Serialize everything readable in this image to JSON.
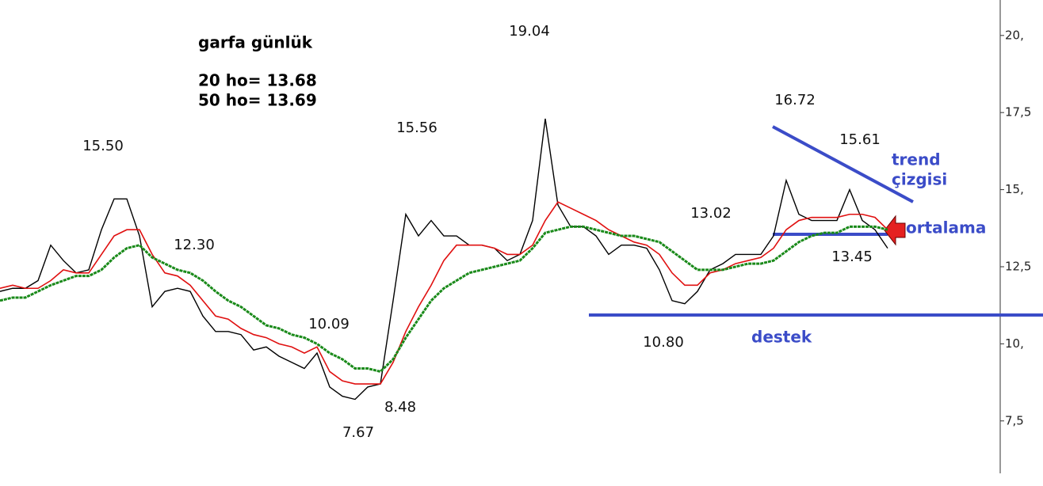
{
  "chart_data": {
    "type": "line",
    "title": "garfa günlük",
    "info_lines": [
      "20 ho= 13.68",
      "50 ho= 13.69"
    ],
    "annotations": [
      "15.50",
      "12.30",
      "10.09",
      "7.67",
      "8.48",
      "15.56",
      "19.04",
      "16.72",
      "15.61",
      "13.02",
      "13.45",
      "10.80"
    ],
    "drawing_labels": [
      "trend",
      "çizgisi",
      "ortalama",
      "destek"
    ],
    "ylim": [
      5.8,
      21.15
    ],
    "yticks": [
      {
        "value": 7.5,
        "label": "7,5"
      },
      {
        "value": 10,
        "label": "10,"
      },
      {
        "value": 12.5,
        "label": "12,5"
      },
      {
        "value": 15,
        "label": "15,"
      },
      {
        "value": 17.5,
        "label": "17,5"
      },
      {
        "value": 20,
        "label": "20,"
      }
    ],
    "series": [
      {
        "color": "#000000",
        "values": [
          11.7,
          11.8,
          11.8,
          12.05,
          13.2,
          12.7,
          12.3,
          12.4,
          13.7,
          14.7,
          14.7,
          13.5,
          11.2,
          11.7,
          11.8,
          11.7,
          10.9,
          10.4,
          10.4,
          10.3,
          9.8,
          9.9,
          9.6,
          9.4,
          9.2,
          9.7,
          8.6,
          8.3,
          8.2,
          8.6,
          8.7,
          11.4,
          14.2,
          13.5,
          14.0,
          13.5,
          13.5,
          13.2,
          13.2,
          13.1,
          12.7,
          12.9,
          14.0,
          17.3,
          14.5,
          13.8,
          13.8,
          13.5,
          12.9,
          13.2,
          13.2,
          13.1,
          12.4,
          11.4,
          11.3,
          11.7,
          12.4,
          12.6,
          12.9,
          12.9,
          12.9,
          13.5,
          15.3,
          14.2,
          14.0,
          14.0,
          14.0,
          15.0,
          14.0,
          13.7,
          13.1
        ]
      },
      {
        "color": "#e01010",
        "values": [
          11.8,
          11.9,
          11.8,
          11.8,
          12.05,
          12.4,
          12.3,
          12.3,
          12.9,
          13.5,
          13.7,
          13.7,
          12.9,
          12.3,
          12.2,
          11.9,
          11.4,
          10.9,
          10.8,
          10.5,
          10.3,
          10.2,
          10.0,
          9.9,
          9.7,
          9.9,
          9.1,
          8.8,
          8.7,
          8.7,
          8.7,
          9.4,
          10.4,
          11.2,
          11.9,
          12.7,
          13.2,
          13.2,
          13.2,
          13.1,
          12.9,
          12.9,
          13.2,
          14.0,
          14.6,
          14.4,
          14.2,
          14.0,
          13.7,
          13.5,
          13.3,
          13.2,
          12.9,
          12.3,
          11.9,
          11.9,
          12.3,
          12.4,
          12.6,
          12.7,
          12.8,
          13.1,
          13.7,
          14.0,
          14.1,
          14.1,
          14.1,
          14.2,
          14.2,
          14.1,
          13.7
        ]
      },
      {
        "color": "#1a8a1a",
        "values": [
          11.4,
          11.5,
          11.5,
          11.7,
          11.9,
          12.05,
          12.2,
          12.2,
          12.4,
          12.8,
          13.1,
          13.2,
          12.8,
          12.6,
          12.4,
          12.3,
          12.05,
          11.7,
          11.4,
          11.2,
          10.9,
          10.6,
          10.5,
          10.3,
          10.2,
          10.0,
          9.7,
          9.5,
          9.2,
          9.2,
          9.1,
          9.5,
          10.2,
          10.8,
          11.4,
          11.8,
          12.05,
          12.3,
          12.4,
          12.5,
          12.6,
          12.7,
          13.1,
          13.6,
          13.7,
          13.8,
          13.8,
          13.7,
          13.6,
          13.5,
          13.5,
          13.4,
          13.3,
          13.0,
          12.7,
          12.4,
          12.4,
          12.4,
          12.5,
          12.6,
          12.6,
          12.7,
          13.0,
          13.3,
          13.5,
          13.6,
          13.6,
          13.8,
          13.8,
          13.8,
          13.7
        ]
      }
    ]
  }
}
